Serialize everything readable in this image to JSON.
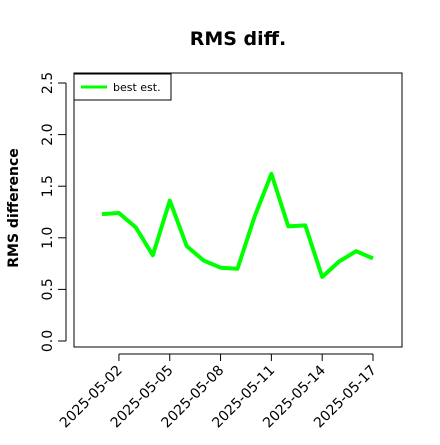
{
  "chart_data": {
    "type": "line",
    "title": "RMS diff.",
    "xlabel": "",
    "ylabel": "RMS difference",
    "x": [
      "2025-05-01",
      "2025-05-02",
      "2025-05-03",
      "2025-05-04",
      "2025-05-05",
      "2025-05-06",
      "2025-05-07",
      "2025-05-08",
      "2025-05-09",
      "2025-05-10",
      "2025-05-11",
      "2025-05-12",
      "2025-05-13",
      "2025-05-14",
      "2025-05-15",
      "2025-05-16",
      "2025-05-17"
    ],
    "series": [
      {
        "name": "best est.",
        "color": "#00ff00",
        "values": [
          1.23,
          1.24,
          1.1,
          0.83,
          1.36,
          0.92,
          0.78,
          0.71,
          0.7,
          1.2,
          1.62,
          1.11,
          1.12,
          0.62,
          0.77,
          0.87,
          0.8
        ]
      }
    ],
    "xticks": [
      "2025-05-02",
      "2025-05-05",
      "2025-05-08",
      "2025-05-11",
      "2025-05-14",
      "2025-05-17"
    ],
    "yticks": [
      "0.0",
      "0.5",
      "1.0",
      "1.5",
      "2.0",
      "2.5"
    ],
    "ylim": [
      0,
      2.5
    ],
    "grid": false,
    "legend_position": "top-left"
  }
}
